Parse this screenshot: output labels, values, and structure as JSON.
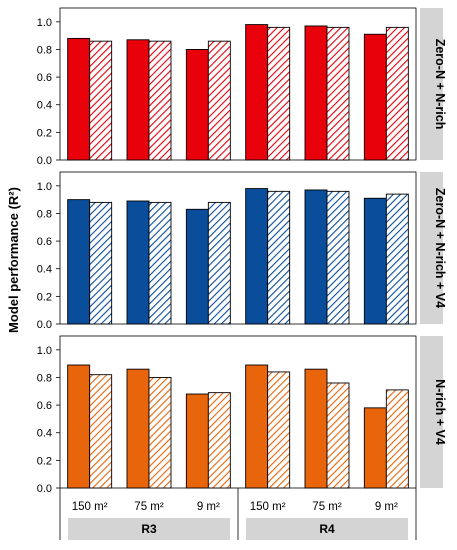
{
  "chart_data": {
    "type": "bar",
    "ylabel": "Model performance (R²)",
    "ylim": [
      0,
      1.1
    ],
    "yticks": [
      "0.0",
      "0.2",
      "0.4",
      "0.6",
      "0.8",
      "1.0"
    ],
    "categories": [
      "150 m²",
      "75 m²",
      "9 m²",
      "150 m²",
      "75 m²",
      "9 m²"
    ],
    "groups": [
      {
        "label": "R3",
        "span": [
          0,
          2
        ]
      },
      {
        "label": "R4",
        "span": [
          3,
          5
        ]
      }
    ],
    "panels": [
      {
        "title": "Zero-N + N-rich",
        "color": "#e8000b",
        "series": [
          {
            "style": "solid",
            "values": [
              0.88,
              0.87,
              0.8,
              0.98,
              0.97,
              0.91
            ]
          },
          {
            "style": "hatched",
            "values": [
              0.86,
              0.86,
              0.86,
              0.96,
              0.96,
              0.96
            ]
          }
        ]
      },
      {
        "title": "Zero-N + N-rich + V4",
        "color": "#0a4e9b",
        "series": [
          {
            "style": "solid",
            "values": [
              0.9,
              0.89,
              0.83,
              0.98,
              0.97,
              0.91
            ]
          },
          {
            "style": "hatched",
            "values": [
              0.88,
              0.88,
              0.88,
              0.96,
              0.96,
              0.94
            ]
          }
        ]
      },
      {
        "title": "N-rich + V4",
        "color": "#e8650b",
        "series": [
          {
            "style": "solid",
            "values": [
              0.89,
              0.86,
              0.68,
              0.89,
              0.86,
              0.58
            ]
          },
          {
            "style": "hatched",
            "values": [
              0.82,
              0.8,
              0.69,
              0.84,
              0.76,
              0.71
            ]
          }
        ]
      }
    ]
  }
}
